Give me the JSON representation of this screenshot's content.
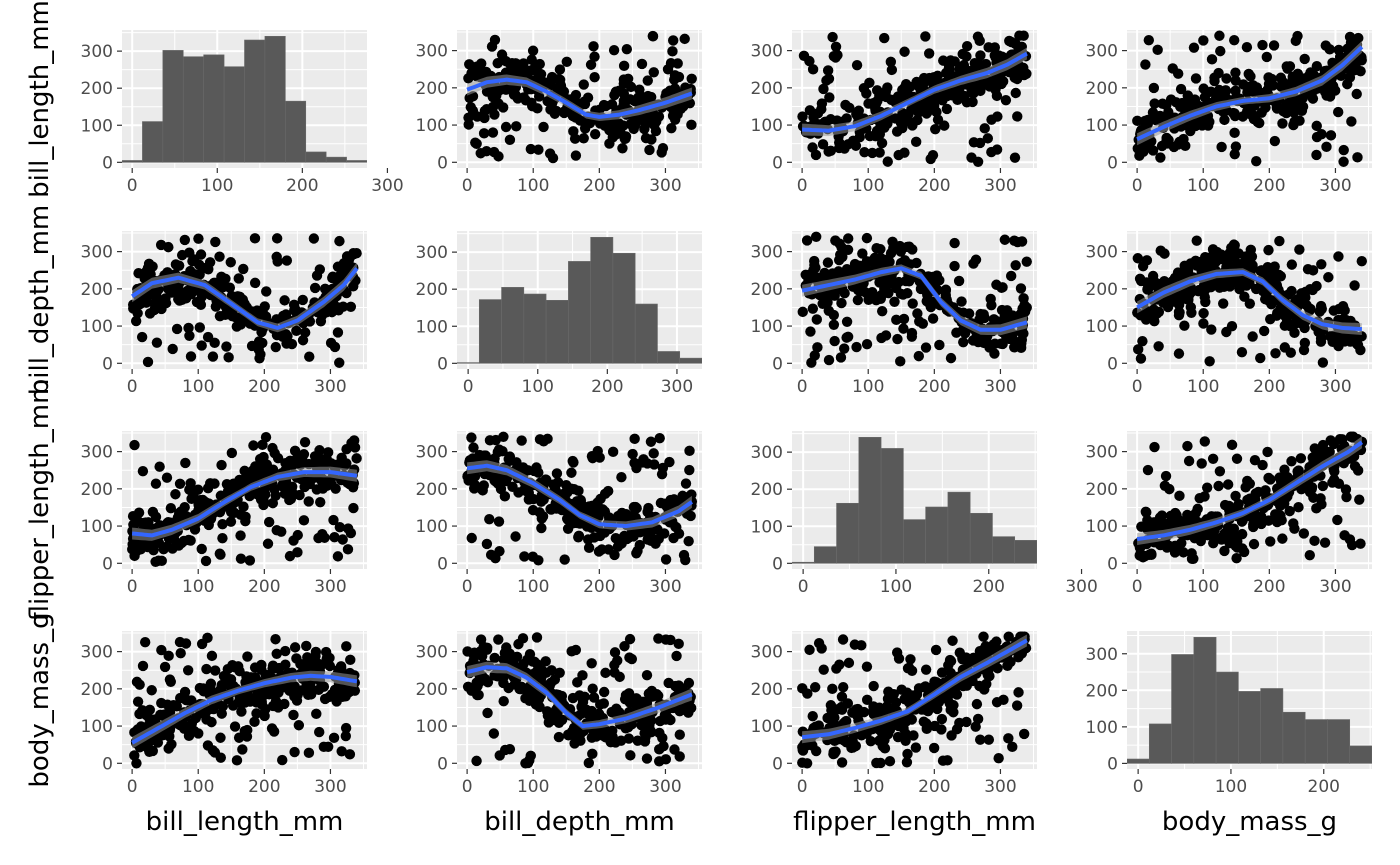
{
  "chart_data": {
    "type": "scatter-matrix",
    "variables": [
      "bill_length_mm",
      "bill_depth_mm",
      "flipper_length_mm",
      "body_mass_g"
    ],
    "xlim": [
      0,
      340
    ],
    "ylim": [
      0,
      340
    ],
    "x_ticks": [
      0,
      100,
      200,
      300
    ],
    "y_ticks": [
      0,
      100,
      200,
      300
    ],
    "grid": true,
    "panel_background": "#ebebeb",
    "point_color": "#000000",
    "smooth_color": "#3366ff",
    "bar_color": "#595959",
    "histograms": {
      "bill_length_mm": {
        "bin_width": 24,
        "bin_start": -12,
        "counts": [
          5,
          110,
          302,
          285,
          290,
          258,
          330,
          340,
          165,
          28,
          14,
          5
        ]
      },
      "bill_depth_mm": {
        "bin_width": 32,
        "bin_start": -16,
        "counts": [
          2,
          172,
          205,
          187,
          170,
          275,
          340,
          297,
          160,
          32,
          14
        ]
      },
      "flipper_length_mm": {
        "bin_width": 24,
        "bin_start": -12,
        "counts": [
          3,
          45,
          162,
          340,
          310,
          118,
          152,
          192,
          135,
          72,
          62
        ]
      },
      "body_mass_g": {
        "bin_width": 24,
        "bin_start": -12,
        "counts": [
          12,
          108,
          298,
          345,
          250,
          197,
          205,
          140,
          120,
          120,
          48
        ]
      }
    },
    "smooth_curves": {
      "bill_depth_mm|bill_length_mm": [
        [
          0,
          195
        ],
        [
          30,
          215
        ],
        [
          60,
          222
        ],
        [
          90,
          215
        ],
        [
          120,
          190
        ],
        [
          150,
          160
        ],
        [
          180,
          128
        ],
        [
          200,
          122
        ],
        [
          230,
          128
        ],
        [
          260,
          140
        ],
        [
          300,
          160
        ],
        [
          340,
          185
        ]
      ],
      "flipper_length_mm|bill_length_mm": [
        [
          0,
          88
        ],
        [
          40,
          85
        ],
        [
          80,
          97
        ],
        [
          120,
          125
        ],
        [
          160,
          160
        ],
        [
          200,
          195
        ],
        [
          240,
          220
        ],
        [
          280,
          240
        ],
        [
          310,
          262
        ],
        [
          340,
          292
        ]
      ],
      "body_mass_g|bill_length_mm": [
        [
          0,
          62
        ],
        [
          40,
          95
        ],
        [
          80,
          125
        ],
        [
          120,
          150
        ],
        [
          160,
          165
        ],
        [
          200,
          172
        ],
        [
          240,
          190
        ],
        [
          280,
          220
        ],
        [
          310,
          260
        ],
        [
          340,
          310
        ]
      ],
      "bill_length_mm|bill_depth_mm": [
        [
          0,
          180
        ],
        [
          30,
          215
        ],
        [
          70,
          230
        ],
        [
          110,
          210
        ],
        [
          150,
          160
        ],
        [
          190,
          110
        ],
        [
          220,
          95
        ],
        [
          250,
          115
        ],
        [
          290,
          165
        ],
        [
          320,
          210
        ],
        [
          340,
          255
        ]
      ],
      "flipper_length_mm|bill_depth_mm": [
        [
          0,
          195
        ],
        [
          40,
          210
        ],
        [
          80,
          225
        ],
        [
          120,
          245
        ],
        [
          150,
          255
        ],
        [
          180,
          235
        ],
        [
          210,
          165
        ],
        [
          240,
          115
        ],
        [
          270,
          90
        ],
        [
          300,
          90
        ],
        [
          330,
          105
        ],
        [
          340,
          110
        ]
      ],
      "body_mass_g|bill_depth_mm": [
        [
          0,
          150
        ],
        [
          40,
          190
        ],
        [
          80,
          220
        ],
        [
          120,
          240
        ],
        [
          160,
          245
        ],
        [
          190,
          220
        ],
        [
          220,
          170
        ],
        [
          250,
          130
        ],
        [
          280,
          105
        ],
        [
          310,
          95
        ],
        [
          340,
          92
        ]
      ],
      "bill_length_mm|flipper_length_mm": [
        [
          0,
          80
        ],
        [
          30,
          75
        ],
        [
          60,
          90
        ],
        [
          100,
          120
        ],
        [
          140,
          165
        ],
        [
          180,
          205
        ],
        [
          220,
          232
        ],
        [
          260,
          245
        ],
        [
          300,
          245
        ],
        [
          340,
          235
        ]
      ],
      "bill_depth_mm|flipper_length_mm": [
        [
          0,
          255
        ],
        [
          30,
          262
        ],
        [
          60,
          250
        ],
        [
          100,
          215
        ],
        [
          140,
          170
        ],
        [
          170,
          130
        ],
        [
          200,
          105
        ],
        [
          240,
          100
        ],
        [
          280,
          110
        ],
        [
          320,
          140
        ],
        [
          340,
          165
        ]
      ],
      "body_mass_g|flipper_length_mm": [
        [
          0,
          65
        ],
        [
          40,
          75
        ],
        [
          80,
          90
        ],
        [
          120,
          110
        ],
        [
          160,
          135
        ],
        [
          200,
          170
        ],
        [
          240,
          215
        ],
        [
          280,
          260
        ],
        [
          320,
          300
        ],
        [
          340,
          325
        ]
      ],
      "bill_length_mm|body_mass_g": [
        [
          0,
          55
        ],
        [
          40,
          95
        ],
        [
          80,
          135
        ],
        [
          120,
          170
        ],
        [
          160,
          195
        ],
        [
          200,
          215
        ],
        [
          240,
          230
        ],
        [
          270,
          235
        ],
        [
          300,
          232
        ],
        [
          340,
          220
        ]
      ],
      "bill_depth_mm|body_mass_g": [
        [
          0,
          245
        ],
        [
          30,
          258
        ],
        [
          60,
          255
        ],
        [
          90,
          230
        ],
        [
          120,
          190
        ],
        [
          150,
          135
        ],
        [
          175,
          100
        ],
        [
          200,
          105
        ],
        [
          240,
          120
        ],
        [
          290,
          150
        ],
        [
          340,
          185
        ]
      ],
      "flipper_length_mm|body_mass_g": [
        [
          0,
          70
        ],
        [
          40,
          78
        ],
        [
          80,
          95
        ],
        [
          120,
          115
        ],
        [
          160,
          140
        ],
        [
          200,
          185
        ],
        [
          240,
          232
        ],
        [
          280,
          270
        ],
        [
          320,
          310
        ],
        [
          340,
          330
        ]
      ]
    }
  }
}
